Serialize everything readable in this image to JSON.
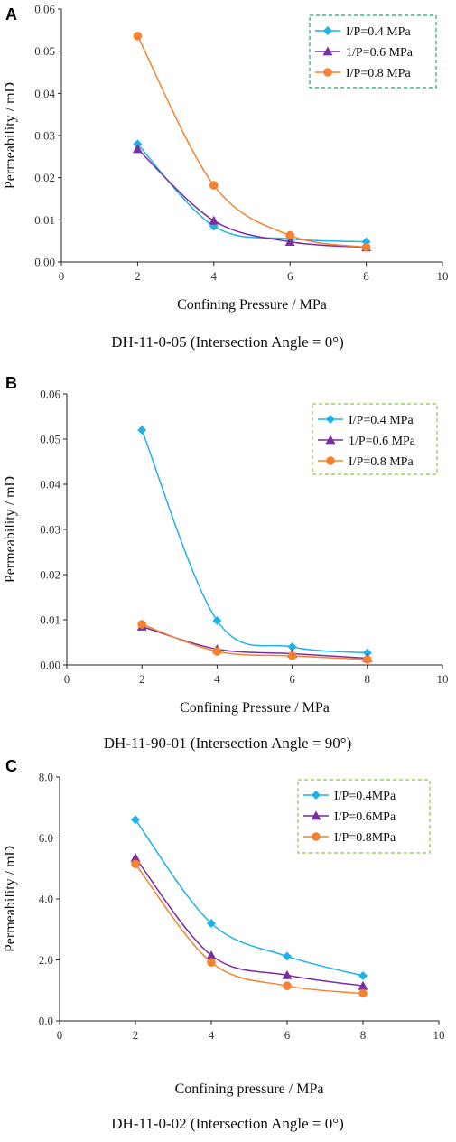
{
  "chart_data": [
    {
      "type": "line",
      "panel_label": "A",
      "caption": "DH-11-0-05 (Intersection Angle = 0°)",
      "xlabel": "Confining Pressure / MPa",
      "ylabel": "Permeability / mD",
      "xlim": [
        0,
        10
      ],
      "ylim": [
        0,
        0.06
      ],
      "xticks": [
        "0",
        "2",
        "4",
        "6",
        "8",
        "10"
      ],
      "yticks": [
        "0.00",
        "0.01",
        "0.02",
        "0.03",
        "0.04",
        "0.05",
        "0.06"
      ],
      "legend_placement": "top-right",
      "legend_border": "#1aa67a",
      "x": [
        2,
        4,
        6,
        8
      ],
      "series": [
        {
          "name": "I/P=0.4 MPa",
          "values": [
            0.028,
            0.0085,
            0.0055,
            0.0048
          ],
          "color": "#1fb2e8",
          "marker": "diamond"
        },
        {
          "name": "1/P=0.6 MPa",
          "values": [
            0.0268,
            0.0098,
            0.0048,
            0.0035
          ],
          "color": "#7a2fa0",
          "marker": "triangle"
        },
        {
          "name": "I/P=0.8 MPa",
          "values": [
            0.0536,
            0.0182,
            0.0063,
            0.0035
          ],
          "color": "#f58231",
          "marker": "circle"
        }
      ]
    },
    {
      "type": "line",
      "panel_label": "B",
      "caption": "DH-11-90-01 (Intersection Angle = 90°)",
      "xlabel": "Confining Pressure / MPa",
      "ylabel": "Permeability / mD",
      "xlim": [
        0,
        10
      ],
      "ylim": [
        0,
        0.06
      ],
      "xticks": [
        "0",
        "2",
        "4",
        "6",
        "8",
        "10"
      ],
      "yticks": [
        "0.00",
        "0.01",
        "0.02",
        "0.03",
        "0.04",
        "0.05",
        "0.06"
      ],
      "legend_placement": "top-right",
      "legend_border": "#8cc63f",
      "x": [
        2,
        4,
        6,
        8
      ],
      "series": [
        {
          "name": "I/P=0.4 MPa",
          "values": [
            0.052,
            0.0098,
            0.004,
            0.0027
          ],
          "color": "#1fb2e8",
          "marker": "diamond"
        },
        {
          "name": "1/P=0.6 MPa",
          "values": [
            0.0085,
            0.0035,
            0.0025,
            0.0015
          ],
          "color": "#7a2fa0",
          "marker": "triangle"
        },
        {
          "name": "I/P=0.8 MPa",
          "values": [
            0.009,
            0.003,
            0.002,
            0.0012
          ],
          "color": "#f58231",
          "marker": "circle"
        }
      ]
    },
    {
      "type": "line",
      "panel_label": "C",
      "caption": "DH-11-0-02 (Intersection Angle = 0°)",
      "xlabel": "Confining pressure / MPa",
      "ylabel": "Permeability / mD",
      "xlim": [
        0,
        10
      ],
      "ylim": [
        0,
        8
      ],
      "xticks": [
        "0",
        "2",
        "4",
        "6",
        "8",
        "10"
      ],
      "yticks": [
        "0.0",
        "2.0",
        "4.0",
        "6.0",
        "8.0"
      ],
      "legend_placement": "top-right",
      "legend_border": "#8cc63f",
      "x": [
        2,
        4,
        6,
        8
      ],
      "series": [
        {
          "name": "I/P=0.4MPa",
          "values": [
            6.6,
            3.2,
            2.12,
            1.48
          ],
          "color": "#1fb2e8",
          "marker": "diamond"
        },
        {
          "name": "I/P=0.6MPa",
          "values": [
            5.35,
            2.15,
            1.5,
            1.15
          ],
          "color": "#7a2fa0",
          "marker": "triangle"
        },
        {
          "name": "I/P=0.8MPa",
          "values": [
            5.15,
            1.92,
            1.15,
            0.9
          ],
          "color": "#f58231",
          "marker": "circle"
        }
      ]
    }
  ]
}
